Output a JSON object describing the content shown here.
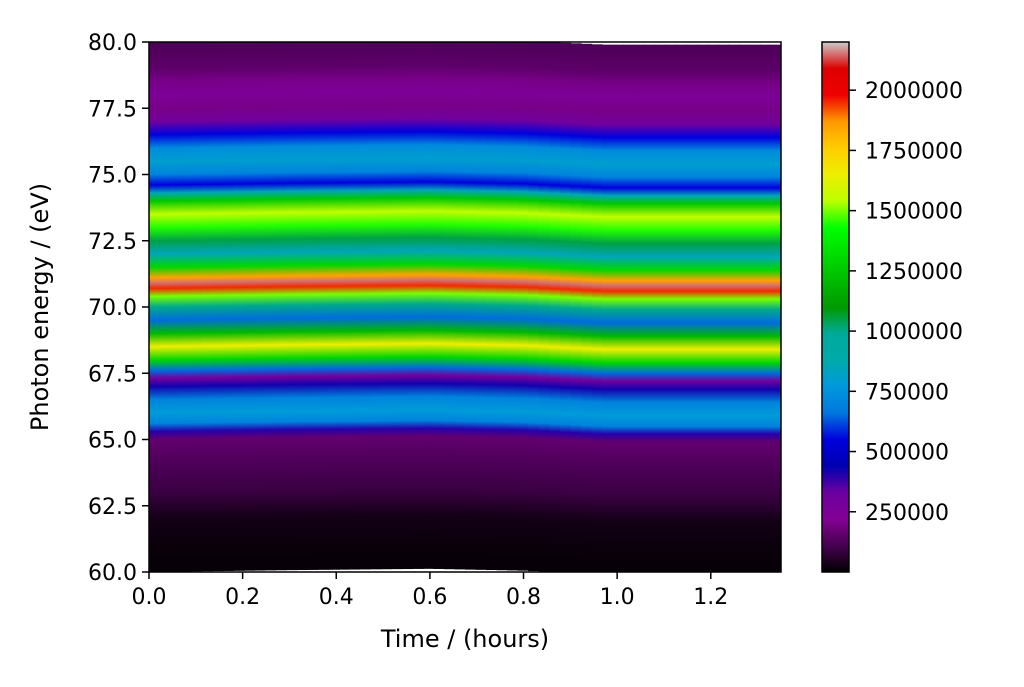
{
  "chart_data": {
    "type": "heatmap",
    "colormap": "nipy_spectral",
    "xlabel": "Time / (hours)",
    "ylabel": "Photon energy / (eV)",
    "xlim": [
      0.0,
      1.35
    ],
    "ylim": [
      60.0,
      80.0
    ],
    "x_ticks": [
      "0.0",
      "0.2",
      "0.4",
      "0.6",
      "0.8",
      "1.0",
      "1.2"
    ],
    "y_ticks": [
      "60.0",
      "62.5",
      "65.0",
      "67.5",
      "70.0",
      "72.5",
      "75.0",
      "77.5",
      "80.0"
    ],
    "colorbar": {
      "range": [
        0,
        2200000
      ],
      "ticks": [
        "250000",
        "500000",
        "750000",
        "1000000",
        "1250000",
        "1500000",
        "1750000",
        "2000000"
      ]
    },
    "intensity_profile_at_start": {
      "energy_eV": [
        60.0,
        61.0,
        62.0,
        62.5,
        63.0,
        64.0,
        65.0,
        65.3,
        65.6,
        66.0,
        66.5,
        67.0,
        67.3,
        67.6,
        68.0,
        68.5,
        69.0,
        69.5,
        70.0,
        70.4,
        70.7,
        70.9,
        71.1,
        71.5,
        72.0,
        72.5,
        73.0,
        73.5,
        74.0,
        74.3,
        74.6,
        75.0,
        75.5,
        76.0,
        76.5,
        77.0,
        77.5,
        78.0,
        78.5,
        79.0,
        80.0
      ],
      "intensity": [
        10000,
        15000,
        30000,
        60000,
        90000,
        120000,
        160000,
        400000,
        700000,
        780000,
        700000,
        420000,
        300000,
        650000,
        1300000,
        1650000,
        1200000,
        650000,
        1000000,
        1500000,
        1950000,
        2150000,
        1850000,
        1300000,
        850000,
        1050000,
        1450000,
        1550000,
        1250000,
        850000,
        550000,
        700000,
        800000,
        720000,
        550000,
        300000,
        200000,
        250000,
        200000,
        150000,
        120000
      ]
    },
    "drift": {
      "time_hours": [
        0.0,
        0.3,
        0.6,
        0.8,
        0.97,
        1.2,
        1.35
      ],
      "energy_shift_eV": [
        0.0,
        0.07,
        0.12,
        0.05,
        -0.1,
        -0.1,
        -0.1
      ]
    }
  }
}
